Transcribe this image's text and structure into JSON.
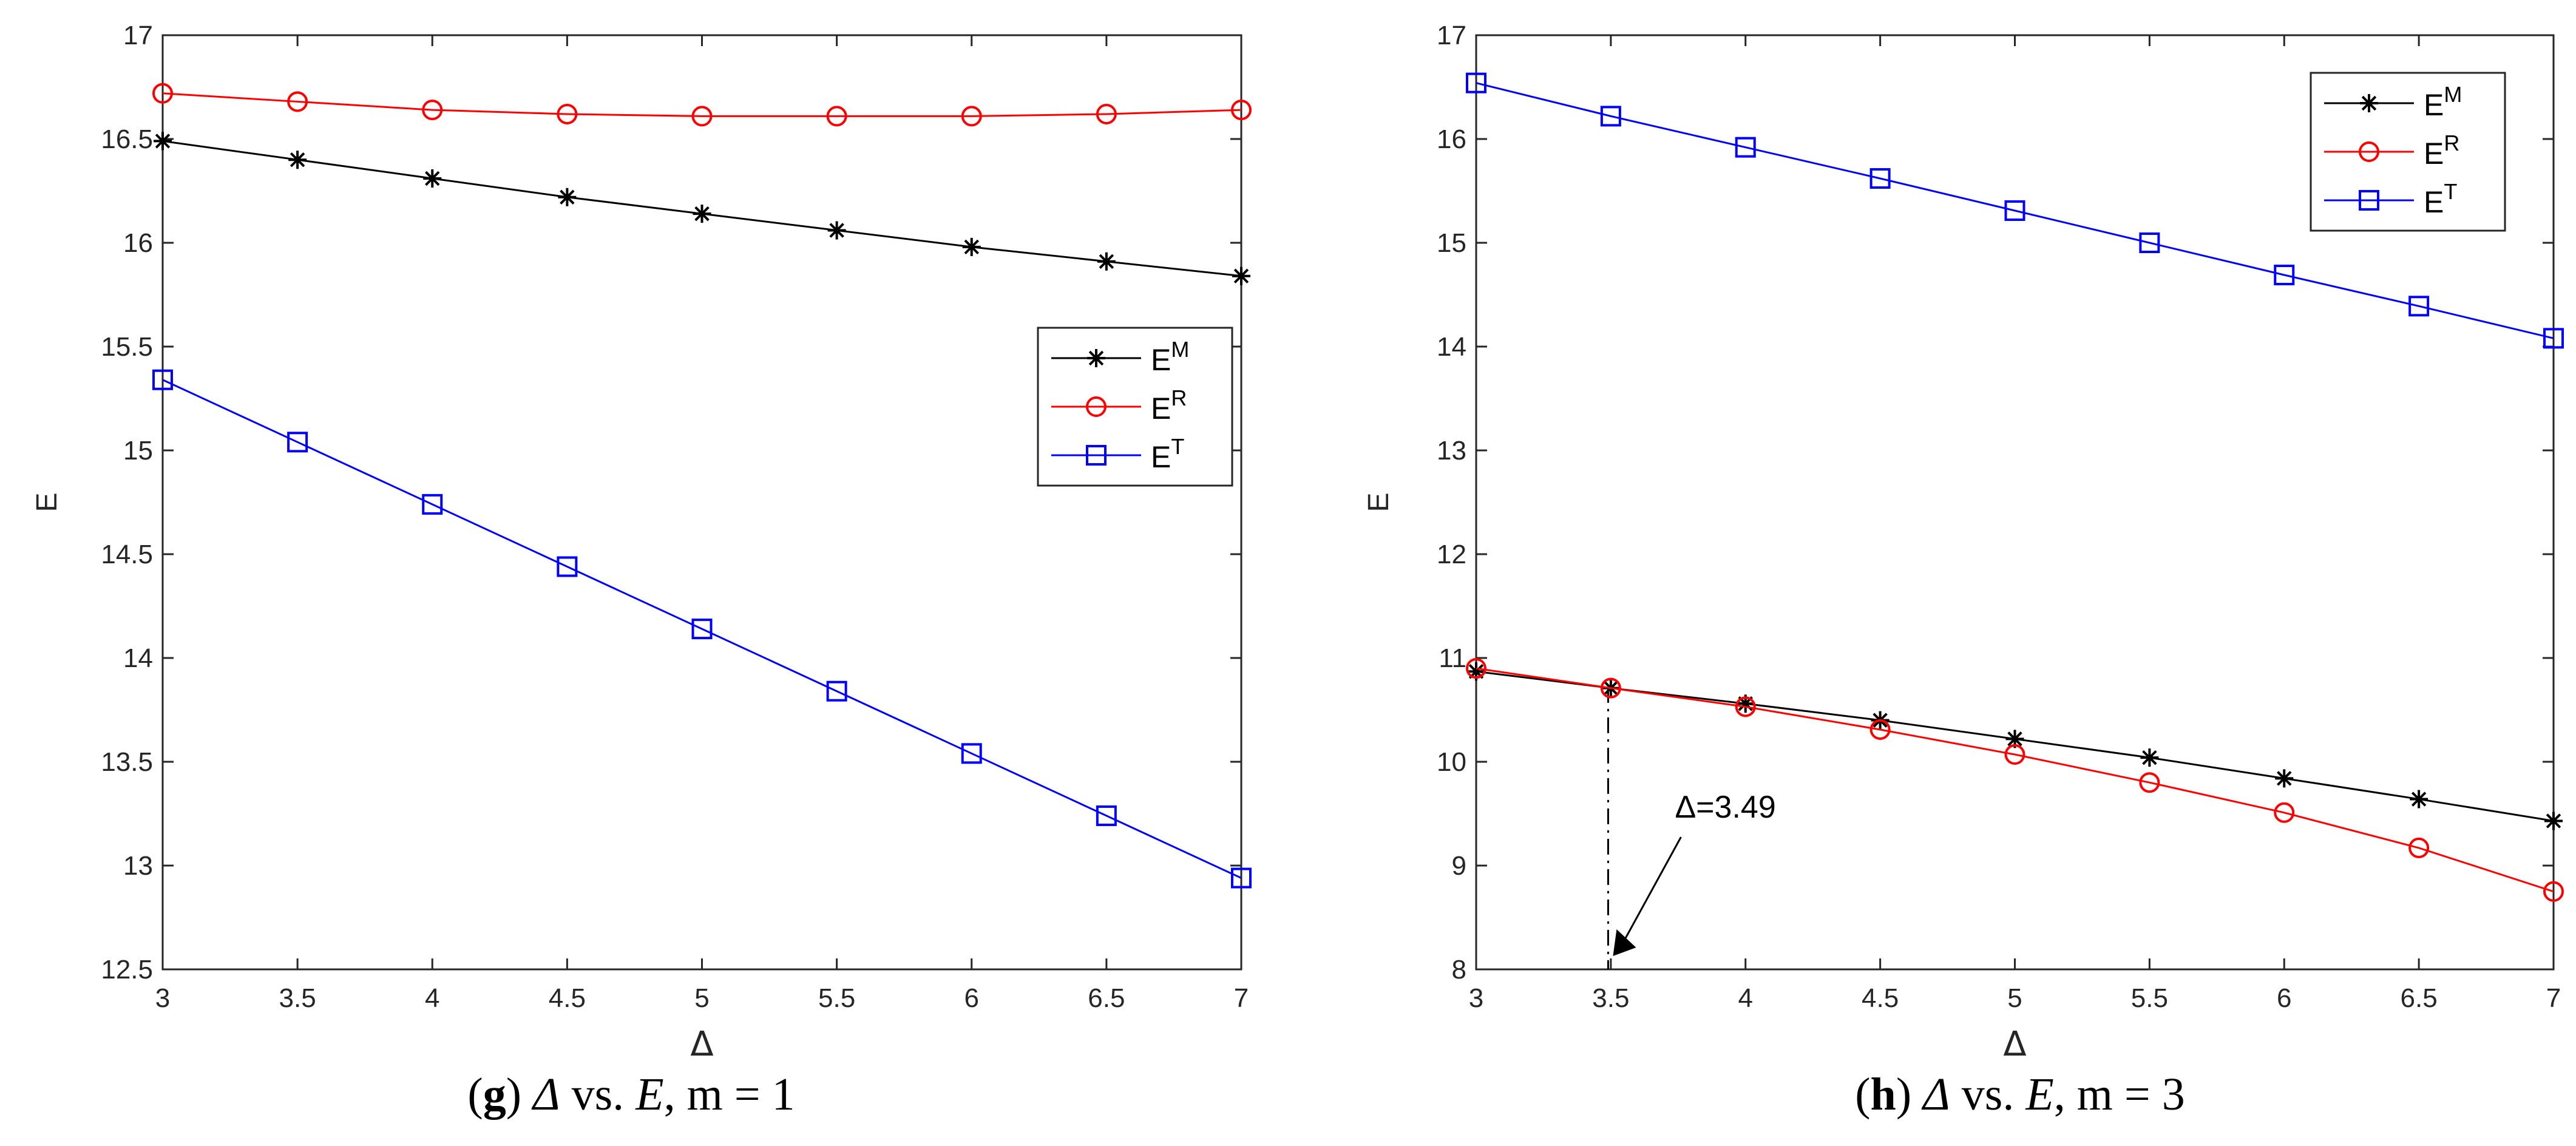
{
  "chart_data": [
    {
      "type": "line",
      "xlabel": "Δ",
      "ylabel": "E",
      "xlim": [
        3,
        7
      ],
      "ylim": [
        12.5,
        17
      ],
      "xticks": [
        "3",
        "3.5",
        "4",
        "4.5",
        "5",
        "5.5",
        "6",
        "6.5",
        "7"
      ],
      "yticks": [
        "12.5",
        "13",
        "13.5",
        "14",
        "14.5",
        "15",
        "15.5",
        "16",
        "16.5",
        "17"
      ],
      "x": [
        3,
        3.5,
        4,
        4.5,
        5,
        5.5,
        6,
        6.5,
        7
      ],
      "legend_position": "right-middle",
      "series": [
        {
          "name": "E^M",
          "label_base": "E",
          "label_sup": "M",
          "color": "#000000",
          "marker": "asterisk",
          "values": [
            16.49,
            16.4,
            16.31,
            16.22,
            16.14,
            16.06,
            15.98,
            15.91,
            15.84
          ]
        },
        {
          "name": "E^R",
          "label_base": "E",
          "label_sup": "R",
          "color": "#ff0000",
          "marker": "circle",
          "values": [
            16.72,
            16.68,
            16.64,
            16.62,
            16.61,
            16.61,
            16.61,
            16.62,
            16.64
          ]
        },
        {
          "name": "E^T",
          "label_base": "E",
          "label_sup": "T",
          "color": "#0000ff",
          "marker": "square",
          "values": [
            15.34,
            15.04,
            14.74,
            14.44,
            14.14,
            13.84,
            13.54,
            13.24,
            12.94
          ]
        }
      ],
      "caption": {
        "letter": "g",
        "rest": " vs. ",
        "var1": "Δ",
        "var2": "E",
        "mpart": ", m = 1"
      }
    },
    {
      "type": "line",
      "xlabel": "Δ",
      "ylabel": "E",
      "xlim": [
        3,
        7
      ],
      "ylim": [
        8,
        17
      ],
      "xticks": [
        "3",
        "3.5",
        "4",
        "4.5",
        "5",
        "5.5",
        "6",
        "6.5",
        "7"
      ],
      "yticks": [
        "8",
        "9",
        "10",
        "11",
        "12",
        "13",
        "14",
        "15",
        "16",
        "17"
      ],
      "x": [
        3,
        3.5,
        4,
        4.5,
        5,
        5.5,
        6,
        6.5,
        7
      ],
      "legend_position": "top-right",
      "series": [
        {
          "name": "E^M",
          "label_base": "E",
          "label_sup": "M",
          "color": "#000000",
          "marker": "asterisk",
          "values": [
            10.87,
            10.71,
            10.56,
            10.4,
            10.22,
            10.04,
            9.84,
            9.64,
            9.43
          ]
        },
        {
          "name": "E^R",
          "label_base": "E",
          "label_sup": "R",
          "color": "#ff0000",
          "marker": "circle",
          "values": [
            10.9,
            10.71,
            10.53,
            10.31,
            10.07,
            9.8,
            9.51,
            9.17,
            8.75
          ]
        },
        {
          "name": "E^T",
          "label_base": "E",
          "label_sup": "T",
          "color": "#0000ff",
          "marker": "square",
          "values": [
            16.54,
            16.22,
            15.92,
            15.62,
            15.31,
            15.0,
            14.69,
            14.39,
            14.08
          ]
        }
      ],
      "annotation": {
        "text": "Δ=3.49",
        "x": 3.49,
        "y_top": 10.72
      },
      "caption": {
        "letter": "h",
        "rest": " vs. ",
        "var1": "Δ",
        "var2": "E",
        "mpart": ", m = 3"
      }
    }
  ]
}
